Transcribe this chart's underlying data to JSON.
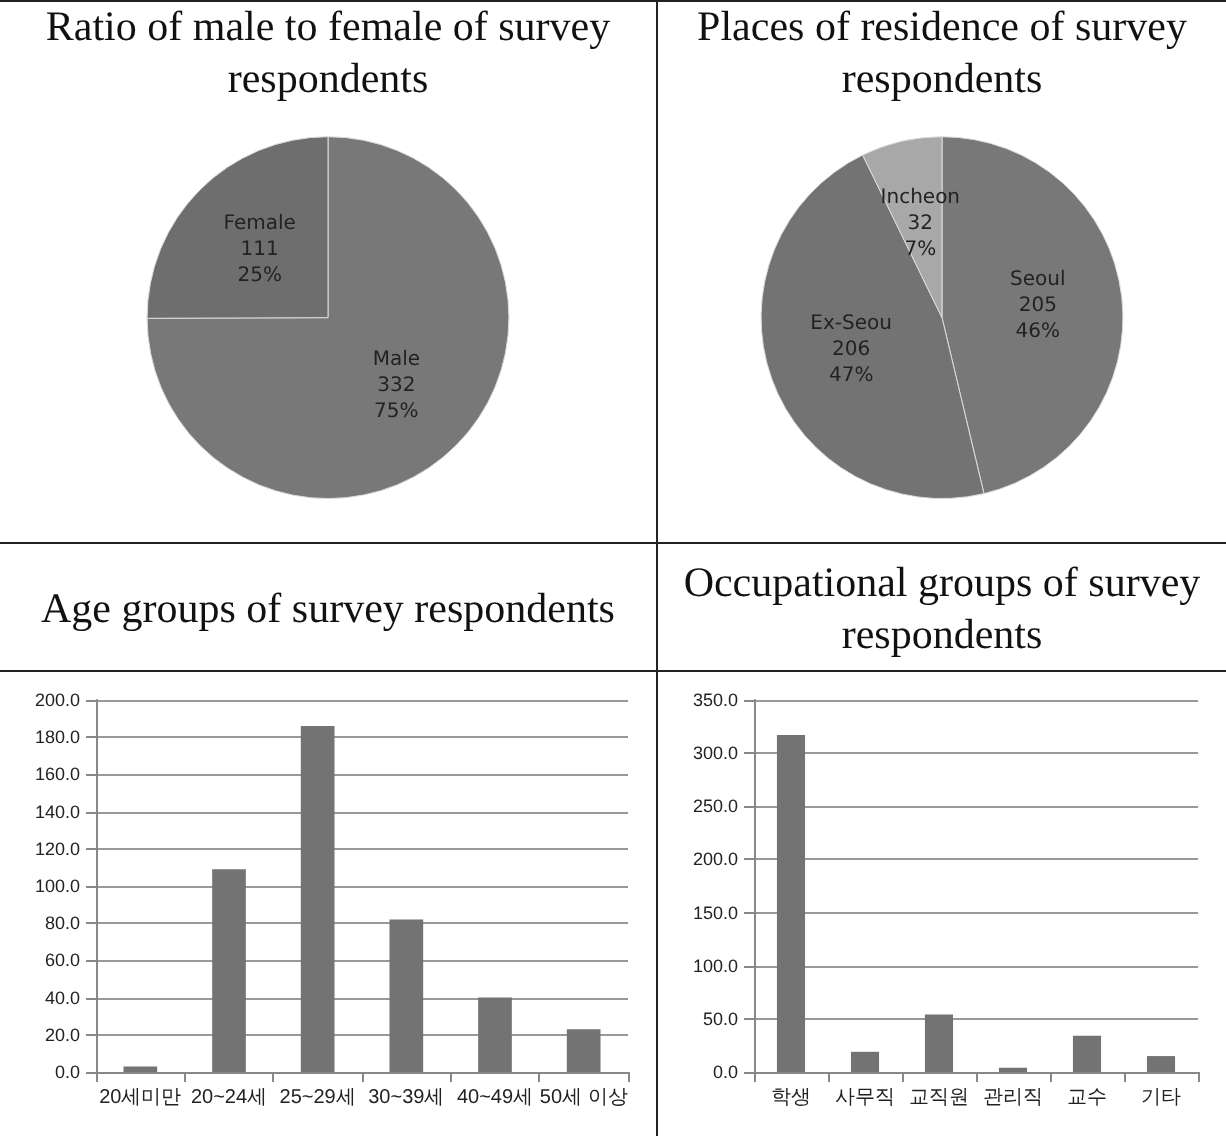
{
  "chart_data": [
    {
      "type": "pie",
      "title": "Ratio of male to female of survey respondents",
      "categories": [
        "Male",
        "Female"
      ],
      "values": [
        332,
        111
      ],
      "colors": [
        "#787878",
        "#6e6e6e"
      ],
      "value_labels": [
        "332\n75%",
        "111\n25%"
      ],
      "legend": false
    },
    {
      "type": "pie",
      "title": "Places of residence of survey respondents",
      "categories": [
        "Seoul",
        "Ex-Seou",
        "Incheon"
      ],
      "values": [
        205,
        206,
        32
      ],
      "colors": [
        "#787878",
        "#737373",
        "#a8a8a8"
      ],
      "value_labels": [
        "205\n46%",
        "206\n47%",
        "32\n7%"
      ],
      "legend": false
    },
    {
      "type": "bar",
      "title": "Age groups of survey respondents",
      "categories": [
        "20세미만",
        "20~24세",
        "25~29세",
        "30~39세",
        "40~49세",
        "50세 이상"
      ],
      "values": [
        3,
        109,
        186,
        82,
        40,
        23
      ],
      "color": "#737373",
      "ylim": [
        0,
        200
      ],
      "yticks": [
        {
          "value": 0,
          "label": "0.0"
        },
        {
          "value": 20,
          "label": "20.0"
        },
        {
          "value": 40,
          "label": "40.0"
        },
        {
          "value": 60,
          "label": "60.0"
        },
        {
          "value": 80,
          "label": "80.0"
        },
        {
          "value": 100,
          "label": "100.0"
        },
        {
          "value": 120,
          "label": "120.0"
        },
        {
          "value": 140,
          "label": "140.0"
        },
        {
          "value": 160,
          "label": "160.0"
        },
        {
          "value": 180,
          "label": "180.0"
        },
        {
          "value": 200,
          "label": "200.0"
        }
      ],
      "grid": "y",
      "legend": false
    },
    {
      "type": "bar",
      "title": "Occupational groups of survey respondents",
      "categories": [
        "학생",
        "사무직",
        "교직원",
        "관리직",
        "교수",
        "기타"
      ],
      "values": [
        317,
        19,
        54,
        4,
        34,
        15
      ],
      "color": "#737373",
      "ylim": [
        0,
        350
      ],
      "yticks": [
        {
          "value": 0,
          "label": "0.0"
        },
        {
          "value": 50,
          "label": "50.0"
        },
        {
          "value": 100,
          "label": "100.0"
        },
        {
          "value": 150,
          "label": "150.0"
        },
        {
          "value": 200,
          "label": "200.0"
        },
        {
          "value": 250,
          "label": "250.0"
        },
        {
          "value": 300,
          "label": "300.0"
        },
        {
          "value": 350,
          "label": "350.0"
        }
      ],
      "grid": "y",
      "legend": false
    }
  ]
}
